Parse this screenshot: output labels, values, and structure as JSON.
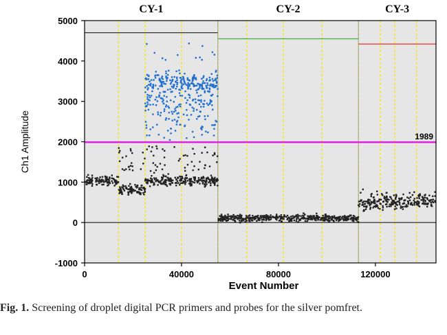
{
  "chart_data": {
    "type": "scatter",
    "title": "",
    "xlabel": "Event Number",
    "ylabel": "Ch1 Amplitude",
    "xlim": [
      0,
      145000
    ],
    "ylim": [
      -1000,
      5000
    ],
    "xticks": [
      0,
      40000,
      80000,
      120000
    ],
    "xtick_labels": [
      "0",
      "40000",
      "80000",
      "120000"
    ],
    "yticks": [
      -1000,
      0,
      1000,
      2000,
      3000,
      4000,
      5000
    ],
    "ytick_labels": [
      "-1000",
      "0",
      "1000",
      "2000",
      "3000",
      "4000",
      "5000"
    ],
    "threshold": {
      "value": 1989,
      "label": "1989",
      "color": "#e020e0"
    },
    "zero_line": 0,
    "wells": [
      {
        "label": "CY-1",
        "x_start": 0,
        "x_end": 55000,
        "top_line": 4700,
        "top_line_color": "#333333"
      },
      {
        "label": "CY-2",
        "x_start": 55000,
        "x_end": 113000,
        "top_line": 4550,
        "top_line_color": "#3cb043"
      },
      {
        "label": "CY-3",
        "x_start": 113000,
        "x_end": 145000,
        "top_line": 4420,
        "top_line_color": "#e0302a"
      }
    ],
    "well_boundaries": [
      55000,
      113000
    ],
    "dividers": [
      14000,
      25000,
      40000,
      55000,
      67000,
      82000,
      98000,
      113000,
      122000,
      128000,
      137000
    ],
    "series": [
      {
        "color": "#1f6fd0",
        "x_range": [
          25000,
          55000
        ],
        "y_center": 3450,
        "y_spread": 300,
        "scatter_down_to": 2000
      },
      {
        "color": "#222222",
        "x_range": [
          0,
          55000
        ],
        "y_center": 1030,
        "y_spread": 140,
        "dip_range": [
          14000,
          25000
        ],
        "dip_center": 800
      },
      {
        "color": "#222222",
        "x_range": [
          55000,
          113000
        ],
        "y_center": 110,
        "y_spread": 90
      },
      {
        "color": "#222222",
        "x_range": [
          113000,
          145000
        ],
        "y_center": 530,
        "y_spread": 220
      }
    ],
    "colors": {
      "plot_background": "#e6e6e6",
      "divider": "#f2e84a",
      "positive": "#1f6fd0",
      "negative": "#222222"
    }
  },
  "caption": {
    "label": "Fig. 1.",
    "text": "Screening of droplet digital PCR primers and probes for the silver pomfret."
  }
}
